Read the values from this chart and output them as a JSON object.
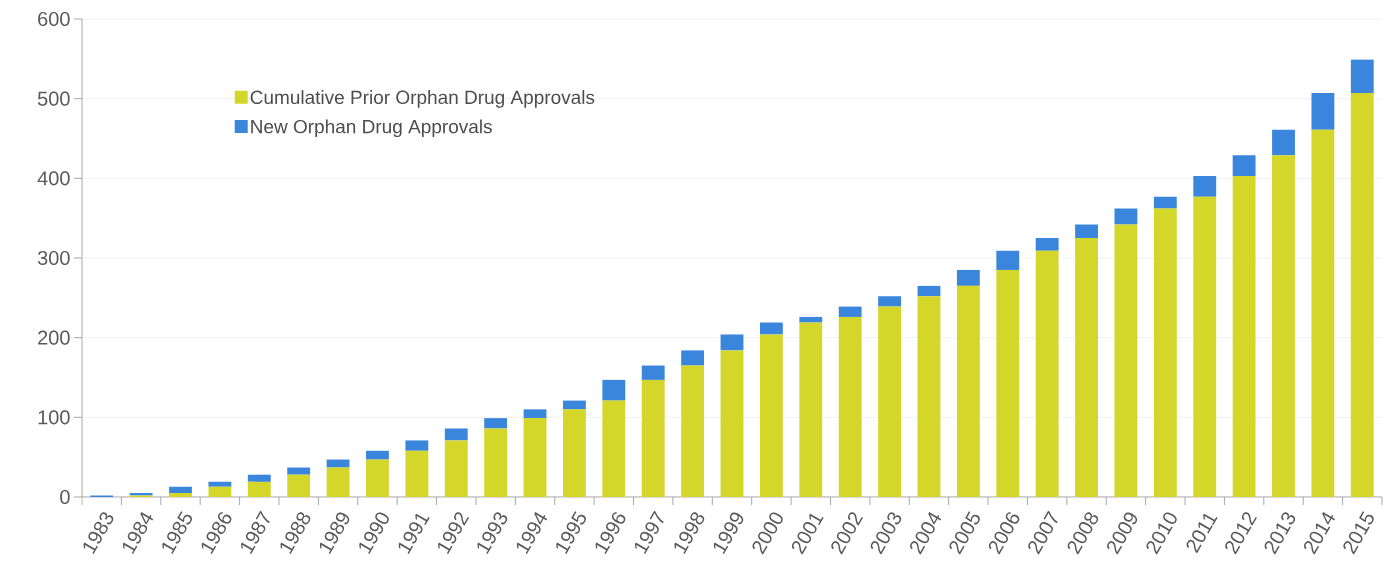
{
  "chart_data": {
    "type": "bar",
    "stacked": true,
    "categories": [
      "1983",
      "1984",
      "1985",
      "1986",
      "1987",
      "1988",
      "1989",
      "1990",
      "1991",
      "1992",
      "1993",
      "1994",
      "1995",
      "1996",
      "1997",
      "1998",
      "1999",
      "2000",
      "2001",
      "2002",
      "2003",
      "2004",
      "2005",
      "2006",
      "2007",
      "2008",
      "2009",
      "2010",
      "2011",
      "2012",
      "2013",
      "2014",
      "2015"
    ],
    "series": [
      {
        "name": "Cumulative Prior Orphan Drug Approvals",
        "color": "#d4d62a",
        "values": [
          0,
          2,
          5,
          13,
          19,
          28,
          37,
          47,
          58,
          71,
          86,
          99,
          110,
          121,
          147,
          165,
          184,
          204,
          219,
          226,
          239,
          252,
          265,
          285,
          309,
          325,
          342,
          362,
          377,
          403,
          429,
          461,
          507
        ]
      },
      {
        "name": "New Orphan Drug Approvals",
        "color": "#3a86dd",
        "values": [
          2,
          3,
          8,
          6,
          9,
          9,
          10,
          11,
          13,
          15,
          13,
          11,
          11,
          26,
          18,
          19,
          20,
          15,
          7,
          13,
          13,
          13,
          20,
          24,
          16,
          17,
          20,
          15,
          26,
          26,
          32,
          46,
          42
        ]
      }
    ],
    "ylim": [
      0,
      600
    ],
    "yticks": [
      0,
      100,
      200,
      300,
      400,
      500,
      600
    ],
    "grid": "y",
    "legend": "top left"
  }
}
